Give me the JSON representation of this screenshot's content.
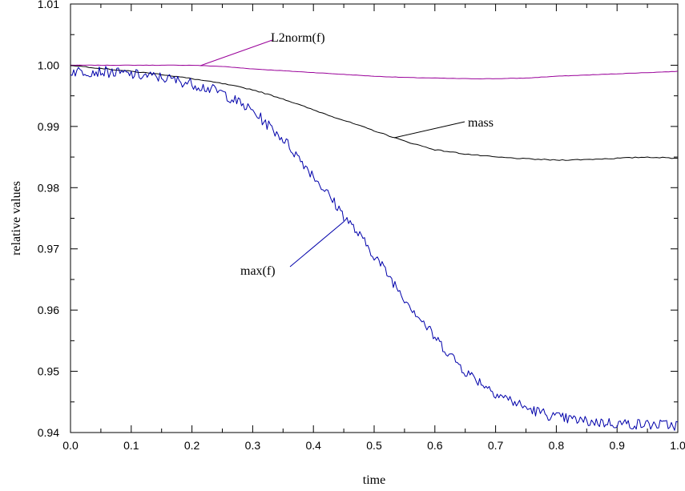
{
  "chart_data": {
    "type": "line",
    "title": "",
    "xlabel": "time",
    "ylabel": "relative values",
    "xlim": [
      0.0,
      1.0
    ],
    "ylim": [
      0.94,
      1.01
    ],
    "x_ticks": [
      "0.0",
      "0.1",
      "0.2",
      "0.3",
      "0.4",
      "0.5",
      "0.6",
      "0.7",
      "0.8",
      "0.9",
      "1.0"
    ],
    "y_ticks": [
      "0.94",
      "0.95",
      "0.96",
      "0.97",
      "0.98",
      "0.99",
      "1.00",
      "1.01"
    ],
    "grid": false,
    "legend": "none",
    "series": [
      {
        "color": "#990099",
        "x": [
          0.0,
          0.05,
          0.1,
          0.15,
          0.2,
          0.25,
          0.3,
          0.35,
          0.4,
          0.45,
          0.5,
          0.55,
          0.6,
          0.65,
          0.7,
          0.75,
          0.8,
          0.85,
          0.9,
          0.95,
          1.0
        ],
        "values": [
          1.0,
          1.0,
          1.0,
          1.0,
          1.0,
          0.9998,
          0.9994,
          0.9991,
          0.9988,
          0.9985,
          0.9982,
          0.998,
          0.9979,
          0.9978,
          0.9978,
          0.9979,
          0.9982,
          0.9984,
          0.9986,
          0.9988,
          0.999
        ]
      },
      {
        "color": "#000000",
        "x": [
          0.0,
          0.05,
          0.1,
          0.15,
          0.2,
          0.25,
          0.3,
          0.35,
          0.4,
          0.45,
          0.5,
          0.55,
          0.6,
          0.65,
          0.7,
          0.75,
          0.8,
          0.85,
          0.9,
          0.95,
          1.0
        ],
        "values": [
          1.0,
          0.9995,
          0.999,
          0.9985,
          0.9978,
          0.997,
          0.996,
          0.9945,
          0.9927,
          0.991,
          0.9893,
          0.9876,
          0.9862,
          0.9855,
          0.985,
          0.9847,
          0.9845,
          0.9846,
          0.9848,
          0.985,
          0.9848
        ]
      },
      {
        "color": "#0000aa",
        "x": [
          0.0,
          0.05,
          0.1,
          0.15,
          0.2,
          0.25,
          0.3,
          0.35,
          0.4,
          0.45,
          0.5,
          0.55,
          0.6,
          0.65,
          0.7,
          0.75,
          0.8,
          0.85,
          0.9,
          0.95,
          1.0
        ],
        "values": [
          0.999,
          0.999,
          0.9985,
          0.998,
          0.997,
          0.9955,
          0.9925,
          0.988,
          0.982,
          0.9755,
          0.969,
          0.962,
          0.9555,
          0.95,
          0.9465,
          0.944,
          0.9425,
          0.9418,
          0.9415,
          0.9413,
          0.9412
        ]
      }
    ],
    "annotations": [
      {
        "text": "L2norm(f)"
      },
      {
        "text": "mass"
      },
      {
        "text": "max(f)"
      }
    ]
  }
}
